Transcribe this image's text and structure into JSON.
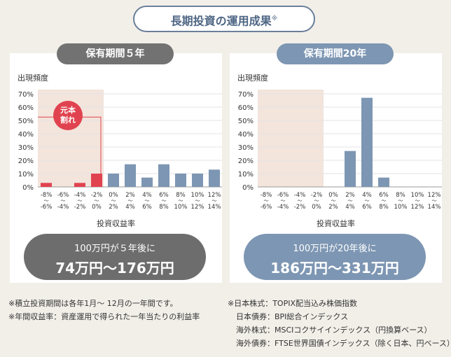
{
  "header": {
    "title": "長期投資の運用成果",
    "title_mark": "※"
  },
  "panels": [
    {
      "period": "保有期間５年",
      "result_line1": "100万円が５年後に",
      "result_line2": "74万円〜176万円"
    },
    {
      "period": "保有期間20年",
      "result_line1": "100万円が20年後に",
      "result_line2": "186万円〜331万円"
    }
  ],
  "notes_left": [
    "※積立投資期間は各年1月〜 12月の一年間です。",
    "※年間収益率：資産運用で得られた一年当たりの利益率"
  ],
  "notes_right": [
    "※日本株式：TOPIX配当込み株価指数",
    "日本債券：BPI総合インデックス",
    "海外株式：MSCIコクサイインデックス（円換算ベース）",
    "海外債券：FTSE世界国債インデックス（除く日本、円ベース）"
  ],
  "chart_data": [
    {
      "type": "bar",
      "ylabel": "出現頻度",
      "xlabel": "投資収益率",
      "ylim": [
        0,
        70
      ],
      "yticks": [
        "0%",
        "10%",
        "20%",
        "30%",
        "40%",
        "50%",
        "60%",
        "70%"
      ],
      "categories": [
        [
          "-8%",
          "-6%"
        ],
        [
          "-6%",
          "-4%"
        ],
        [
          "-4%",
          "-2%"
        ],
        [
          "-2%",
          "0%"
        ],
        [
          "0%",
          "2%"
        ],
        [
          "2%",
          "4%"
        ],
        [
          "4%",
          "6%"
        ],
        [
          "6%",
          "8%"
        ],
        [
          "8%",
          "10%"
        ],
        [
          "10%",
          "12%"
        ],
        [
          "12%",
          "14%"
        ]
      ],
      "values": [
        3,
        0,
        3,
        10,
        10,
        17,
        7,
        17,
        10,
        10,
        13
      ],
      "loss_annotation": "元本割れ",
      "colors": {
        "loss": "#e0434f",
        "gain": "#7d96b3",
        "loss_bg": "#f3e4dc"
      }
    },
    {
      "type": "bar",
      "ylabel": "出現頻度",
      "xlabel": "投資収益率",
      "ylim": [
        0,
        70
      ],
      "yticks": [
        "0%",
        "10%",
        "20%",
        "30%",
        "40%",
        "50%",
        "60%",
        "70%"
      ],
      "categories": [
        [
          "-8%",
          "-6%"
        ],
        [
          "-6%",
          "-4%"
        ],
        [
          "-4%",
          "-2%"
        ],
        [
          "-2%",
          "0%"
        ],
        [
          "0%",
          "2%"
        ],
        [
          "2%",
          "4%"
        ],
        [
          "4%",
          "6%"
        ],
        [
          "6%",
          "8%"
        ],
        [
          "8%",
          "10%"
        ],
        [
          "10%",
          "12%"
        ],
        [
          "12%",
          "14%"
        ]
      ],
      "values": [
        0,
        0,
        0,
        0,
        0,
        27,
        67,
        7,
        0,
        0,
        0
      ],
      "colors": {
        "loss": "#e0434f",
        "gain": "#7d96b3",
        "loss_bg": "#f3e4dc"
      }
    }
  ]
}
